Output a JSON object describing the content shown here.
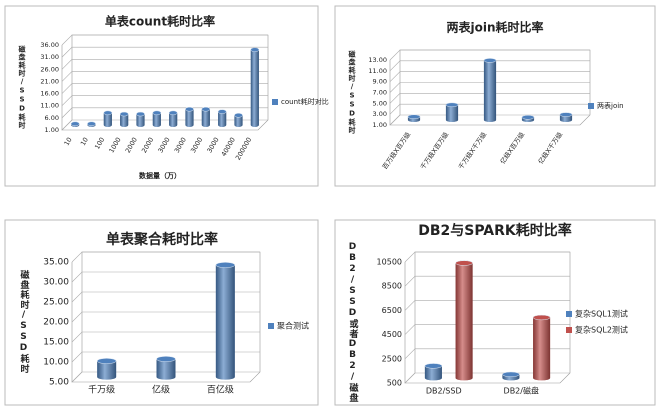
{
  "chart_data": [
    {
      "type": "bar",
      "title": "单表count耗时比率",
      "ylabel": "磁盘耗时/SSD耗时",
      "xlabel": "数据量（万）",
      "categories": [
        "10",
        "10",
        "100",
        "1000",
        "2000",
        "2000",
        "3000",
        "3000",
        "3000",
        "3000",
        "40000",
        "200000"
      ],
      "series": [
        {
          "name": "count耗时对比",
          "color": "#4f81bd",
          "values": [
            1.5,
            1.5,
            6,
            5.5,
            5.5,
            6,
            6,
            7.5,
            7.5,
            6.5,
            5,
            32
          ]
        }
      ],
      "ylim": [
        1,
        36
      ],
      "yticks": [
        {
          "value": 1,
          "label": "1.00"
        },
        {
          "value": 6,
          "label": "6.00"
        },
        {
          "value": 11,
          "label": "11.00"
        },
        {
          "value": 16,
          "label": "16.00"
        },
        {
          "value": 21,
          "label": "21.00"
        },
        {
          "value": 26,
          "label": "26.00"
        },
        {
          "value": 31,
          "label": "31.00"
        },
        {
          "value": 36,
          "label": "36.00"
        }
      ],
      "grid": true
    },
    {
      "type": "bar",
      "title": "两表join耗时比率",
      "ylabel": "磁盘耗时/SSD耗时",
      "categories": [
        "百万级X百万级",
        "千万级X百万级",
        "千万级X千万级",
        "亿级X百万级",
        "亿级X千万级"
      ],
      "series": [
        {
          "name": "两表join",
          "color": "#4f81bd",
          "values": [
            1.6,
            3.8,
            12,
            1.5,
            2.0
          ]
        }
      ],
      "ylim": [
        1,
        13
      ],
      "yticks": [
        {
          "value": 1,
          "label": "1.00"
        },
        {
          "value": 3,
          "label": "3.00"
        },
        {
          "value": 5,
          "label": "5.00"
        },
        {
          "value": 7,
          "label": "7.00"
        },
        {
          "value": 9,
          "label": "9.00"
        },
        {
          "value": 11,
          "label": "11.00"
        },
        {
          "value": 13,
          "label": "13.00"
        }
      ],
      "grid": true
    },
    {
      "type": "bar",
      "title": "单表聚合耗时比率",
      "ylabel": "磁盘耗时/SSD耗时",
      "categories": [
        "千万级",
        "亿级",
        "百亿级"
      ],
      "series": [
        {
          "name": "聚合测试",
          "color": "#4f81bd",
          "values": [
            9,
            9.5,
            33
          ]
        }
      ],
      "ylim": [
        5,
        35
      ],
      "yticks": [
        {
          "value": 5,
          "label": "5.00"
        },
        {
          "value": 10,
          "label": "10.00"
        },
        {
          "value": 15,
          "label": "15.00"
        },
        {
          "value": 20,
          "label": "20.00"
        },
        {
          "value": 25,
          "label": "25.00"
        },
        {
          "value": 30,
          "label": "30.00"
        },
        {
          "value": 35,
          "label": "35.00"
        }
      ],
      "grid": true
    },
    {
      "type": "bar",
      "title": "DB2与SPARK耗时比率",
      "ylabel": "DB2/SSD或者DB2/磁盘",
      "categories": [
        "DB2/SSD",
        "DB2/磁盘"
      ],
      "series": [
        {
          "name": "复杂SQL1测试",
          "color": "#4f81bd",
          "values": [
            1500,
            800
          ]
        },
        {
          "name": "复杂SQL2测试",
          "color": "#c0504d",
          "values": [
            10000,
            5500
          ]
        }
      ],
      "ylim": [
        500,
        10500
      ],
      "yticks": [
        500,
        2500,
        4500,
        6500,
        8500,
        10500
      ],
      "grid": true
    }
  ]
}
